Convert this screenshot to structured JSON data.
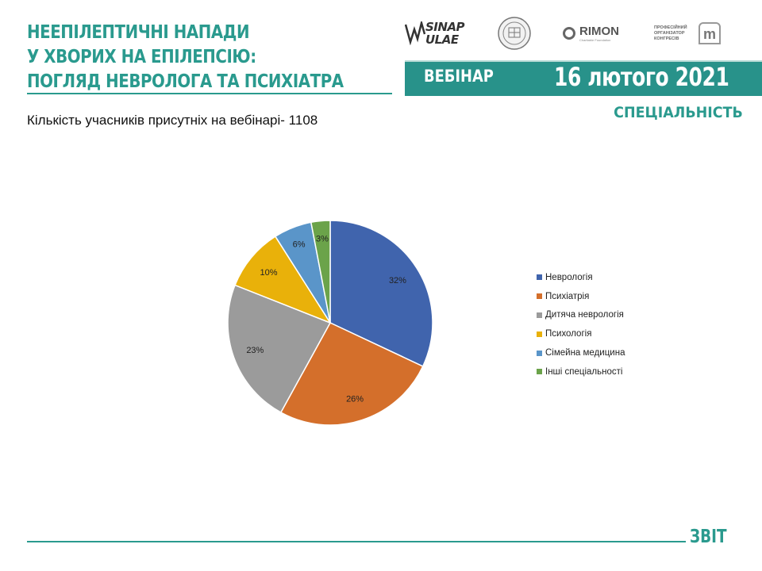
{
  "header": {
    "title_lines": [
      "НЕЕПІЛЕПТИЧНІ НАПАДИ",
      "У ХВОРИХ НА ЕПІЛЕПСІЮ:",
      "ПОГЛЯД НЕВРОЛОГА ТА ПСИХІАТРА"
    ],
    "logos": {
      "sinaps_line1": "SINAP",
      "sinaps_line2": "ULAE",
      "rimon_name": "RIMON",
      "rimon_sub": "Charitable Foundation",
      "organizer_text": "ПРОФЕСІЙНИЙ ОРГАНІЗАТОР КОНГРЕСІВ",
      "organizer_mark": "m"
    },
    "banner_left": "ВЕБІНАР",
    "banner_right": "16 лютого 2021"
  },
  "section_title": "СПЕЦІАЛЬНІСТЬ",
  "subtitle": "Кількість учасників присутніх на вебінарі- 1108",
  "chart_data": {
    "type": "pie",
    "categories": [
      "Неврологія",
      "Психіатрія",
      "Дитяча неврологія",
      "Психологія",
      "Сімейна медицина",
      "Інші спеціальності"
    ],
    "values": [
      32,
      26,
      23,
      10,
      6,
      3
    ],
    "labels": [
      "32%",
      "26%",
      "23%",
      "10%",
      "6%",
      "3%"
    ],
    "colors": [
      "#4064ad",
      "#d46f2b",
      "#9b9b9b",
      "#e9b10a",
      "#5a95c9",
      "#6ba34a"
    ],
    "legend_position": "right",
    "start_angle_deg": 0,
    "direction": "clockwise"
  },
  "footer": {
    "label": "ЗВІТ"
  },
  "colors": {
    "accent": "#2a9a8e",
    "banner": "#28928a"
  }
}
